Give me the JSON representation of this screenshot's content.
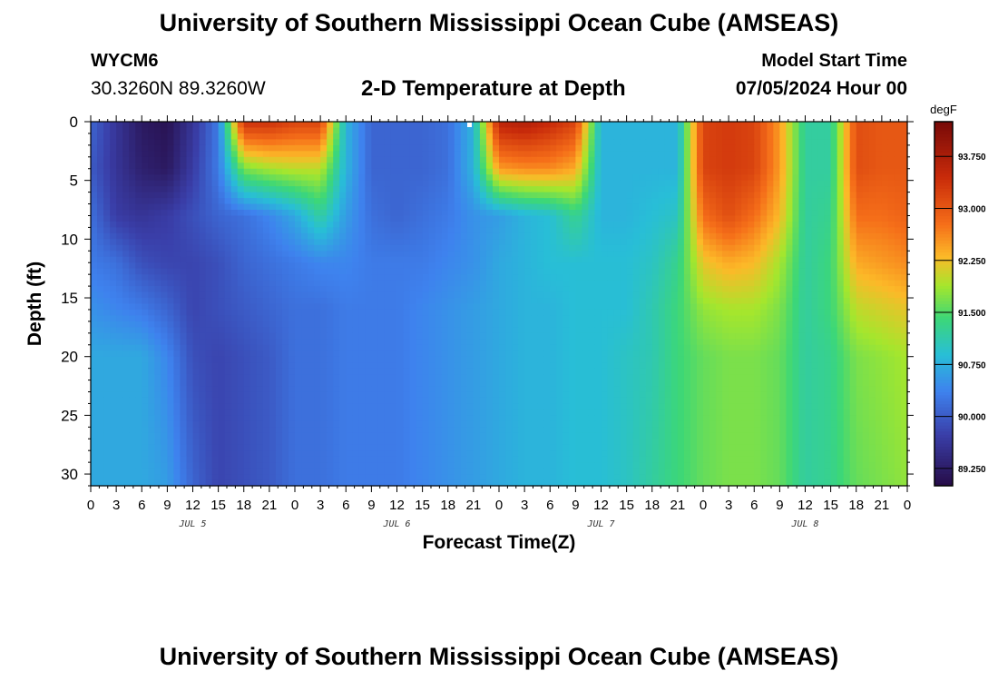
{
  "header": {
    "title": "University of Southern Mississippi Ocean Cube (AMSEAS)",
    "station_id": "WYCM6",
    "coordinates": "30.3260N  89.3260W",
    "subtitle": "2-D Temperature at Depth",
    "model_start_label": "Model Start Time",
    "model_start_value": "07/05/2024 Hour 00"
  },
  "footer": {
    "title": "University of Southern Mississippi Ocean Cube (AMSEAS)"
  },
  "chart_data": {
    "type": "heatmap",
    "title": "2-D Temperature at Depth",
    "xlabel": "Forecast Time(Z)",
    "ylabel": "Depth (ft)",
    "x_unit": "hours from model start",
    "xlim": [
      0,
      96
    ],
    "ylim": [
      0,
      31
    ],
    "y_inverted": true,
    "xticks": [
      0,
      3,
      6,
      9,
      12,
      15,
      18,
      21,
      24,
      27,
      30,
      33,
      36,
      39,
      42,
      45,
      48,
      51,
      54,
      57,
      60,
      63,
      66,
      69,
      72,
      75,
      78,
      81,
      84,
      87,
      90,
      93,
      96
    ],
    "xtick_labels": [
      "0",
      "3",
      "6",
      "9",
      "12",
      "15",
      "18",
      "21",
      "0",
      "3",
      "6",
      "9",
      "12",
      "15",
      "18",
      "21",
      "0",
      "3",
      "6",
      "9",
      "12",
      "15",
      "18",
      "21",
      "0",
      "3",
      "6",
      "9",
      "12",
      "15",
      "18",
      "21",
      "0"
    ],
    "yticks": [
      0,
      5,
      10,
      15,
      20,
      25,
      30
    ],
    "ytick_labels": [
      "0",
      "5",
      "10",
      "15",
      "20",
      "25",
      "30"
    ],
    "day_labels": [
      {
        "label": "JUL 5",
        "hour": 12
      },
      {
        "label": "JUL 6",
        "hour": 36
      },
      {
        "label": "JUL 7",
        "hour": 60
      },
      {
        "label": "JUL 8",
        "hour": 84
      }
    ],
    "colorbar": {
      "unit": "degF",
      "min": 89.0,
      "max": 94.25,
      "ticks": [
        89.25,
        90.0,
        90.75,
        91.5,
        92.25,
        93.0,
        93.75
      ],
      "tick_labels": [
        "89.250",
        "90.000",
        "90.750",
        "91.500",
        "92.250",
        "93.000",
        "93.750"
      ]
    },
    "grid_hours": [
      0,
      3,
      6,
      9,
      12,
      15,
      18,
      21,
      24,
      27,
      30,
      33,
      36,
      39,
      42,
      45,
      48,
      51,
      54,
      57,
      60,
      63,
      66,
      69,
      72,
      75,
      78,
      81,
      84,
      87,
      90,
      93,
      96
    ],
    "grid_depths": [
      0,
      4,
      8,
      12,
      16,
      20,
      31
    ],
    "values": [
      [
        90.1,
        89.6,
        89.2,
        89.1,
        89.6,
        90.3,
        93.4,
        93.4,
        93.2,
        93.2,
        90.8,
        90.1,
        90.1,
        90.1,
        90.2,
        90.8,
        93.6,
        93.7,
        93.5,
        93.2,
        90.8,
        90.8,
        90.8,
        90.8,
        93.2,
        93.3,
        93.2,
        92.5,
        91.2,
        91.2,
        93.1,
        93.0,
        93.0
      ],
      [
        90.0,
        89.6,
        89.3,
        89.2,
        89.7,
        90.3,
        91.7,
        91.9,
        92.0,
        92.0,
        90.8,
        90.1,
        90.1,
        90.1,
        90.2,
        90.8,
        92.5,
        92.6,
        92.6,
        92.4,
        90.8,
        90.8,
        90.8,
        90.8,
        93.2,
        93.3,
        93.2,
        92.5,
        91.2,
        91.2,
        93.1,
        93.0,
        93.0
      ],
      [
        90.2,
        89.7,
        89.6,
        89.7,
        89.9,
        90.1,
        90.2,
        90.4,
        90.7,
        91.2,
        90.6,
        90.2,
        90.1,
        90.2,
        90.3,
        90.5,
        90.6,
        90.8,
        90.9,
        91.3,
        90.8,
        90.8,
        90.9,
        91.0,
        92.8,
        93.1,
        92.8,
        92.3,
        91.2,
        91.3,
        92.8,
        92.8,
        92.9
      ],
      [
        90.3,
        90.2,
        89.9,
        89.8,
        89.8,
        89.9,
        90.1,
        90.2,
        90.3,
        90.4,
        90.4,
        90.3,
        90.3,
        90.3,
        90.4,
        90.5,
        90.7,
        90.8,
        90.9,
        90.9,
        90.9,
        90.9,
        91.0,
        91.3,
        92.2,
        92.4,
        92.3,
        91.9,
        91.2,
        91.4,
        92.4,
        92.5,
        92.6
      ],
      [
        90.5,
        90.4,
        90.3,
        90.1,
        89.8,
        89.9,
        90.0,
        90.1,
        90.2,
        90.2,
        90.3,
        90.3,
        90.3,
        90.4,
        90.5,
        90.6,
        90.7,
        90.8,
        90.8,
        90.9,
        90.9,
        90.9,
        91.1,
        91.4,
        91.8,
        91.9,
        91.9,
        91.7,
        91.2,
        91.4,
        92.0,
        92.1,
        92.2
      ],
      [
        90.7,
        90.7,
        90.7,
        90.4,
        89.9,
        89.8,
        89.9,
        90.0,
        90.2,
        90.2,
        90.3,
        90.3,
        90.3,
        90.4,
        90.5,
        90.6,
        90.7,
        90.8,
        90.8,
        90.9,
        90.9,
        91.0,
        91.1,
        91.4,
        91.6,
        91.7,
        91.7,
        91.6,
        91.2,
        91.3,
        91.7,
        91.8,
        91.9
      ],
      [
        90.7,
        90.7,
        90.7,
        90.6,
        90.1,
        89.8,
        89.9,
        90.0,
        90.2,
        90.2,
        90.3,
        90.3,
        90.3,
        90.4,
        90.5,
        90.6,
        90.7,
        90.8,
        90.8,
        90.9,
        90.9,
        91.0,
        91.2,
        91.4,
        91.6,
        91.7,
        91.7,
        91.6,
        91.2,
        91.3,
        91.6,
        91.7,
        91.8
      ]
    ]
  }
}
